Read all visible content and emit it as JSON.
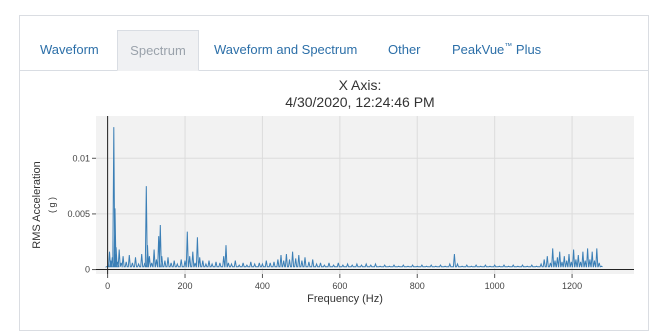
{
  "tabs": [
    {
      "label": "Waveform",
      "active": false
    },
    {
      "label": "Spectrum",
      "active": true
    },
    {
      "label": "Waveform and Spectrum",
      "active": false
    },
    {
      "label": "Other",
      "active": false
    },
    {
      "label": "PeakVue",
      "suffix": "™",
      "label_tail": " Plus",
      "active": false
    }
  ],
  "chart": {
    "title_line1": "X Axis:",
    "title_line2": "4/30/2020, 12:24:46 PM"
  },
  "colors": {
    "series": "#3b7fb6",
    "plot_background": "#f2f2f2",
    "tab_text": "#2c6fa8"
  },
  "chart_data": {
    "type": "line",
    "title": "X Axis: 4/30/2020, 12:24:46 PM",
    "xlabel": "Frequency (Hz)",
    "ylabel": "RMS Acceleration",
    "ylabel_unit": "( g )",
    "xlim": [
      -30,
      1360
    ],
    "ylim": [
      -0.0004,
      0.0138
    ],
    "xticks": [
      0,
      200,
      400,
      600,
      800,
      1000,
      1200
    ],
    "yticks": [
      0,
      0.005,
      0.01
    ],
    "ytick_labels": [
      "0",
      "0.005",
      "0.01"
    ],
    "grid": true,
    "peaks": [
      [
        0,
        0.0003
      ],
      [
        5,
        0.0016
      ],
      [
        8,
        0.0008
      ],
      [
        12,
        0.0011
      ],
      [
        16,
        0.0128
      ],
      [
        19,
        0.0055
      ],
      [
        22,
        0.002
      ],
      [
        26,
        0.0007
      ],
      [
        30,
        0.0018
      ],
      [
        35,
        0.0006
      ],
      [
        40,
        0.0012
      ],
      [
        48,
        0.0007
      ],
      [
        56,
        0.0013
      ],
      [
        64,
        0.0006
      ],
      [
        72,
        0.0011
      ],
      [
        80,
        0.0005
      ],
      [
        88,
        0.0014
      ],
      [
        96,
        0.0006
      ],
      [
        100,
        0.0075
      ],
      [
        103,
        0.0022
      ],
      [
        108,
        0.0012
      ],
      [
        114,
        0.0006
      ],
      [
        120,
        0.0018
      ],
      [
        126,
        0.0009
      ],
      [
        132,
        0.003
      ],
      [
        136,
        0.004
      ],
      [
        140,
        0.0012
      ],
      [
        148,
        0.0008
      ],
      [
        156,
        0.0011
      ],
      [
        164,
        0.0006
      ],
      [
        172,
        0.0008
      ],
      [
        180,
        0.0005
      ],
      [
        190,
        0.0009
      ],
      [
        200,
        0.0008
      ],
      [
        206,
        0.0034
      ],
      [
        212,
        0.0012
      ],
      [
        220,
        0.0016
      ],
      [
        226,
        0.0006
      ],
      [
        232,
        0.0029
      ],
      [
        238,
        0.0011
      ],
      [
        246,
        0.0008
      ],
      [
        254,
        0.0005
      ],
      [
        262,
        0.0008
      ],
      [
        270,
        0.0005
      ],
      [
        280,
        0.0007
      ],
      [
        290,
        0.0006
      ],
      [
        300,
        0.0012
      ],
      [
        306,
        0.0022
      ],
      [
        312,
        0.0006
      ],
      [
        320,
        0.0005
      ],
      [
        330,
        0.0008
      ],
      [
        340,
        0.0004
      ],
      [
        350,
        0.0006
      ],
      [
        360,
        0.0004
      ],
      [
        370,
        0.0007
      ],
      [
        380,
        0.0005
      ],
      [
        392,
        0.0006
      ],
      [
        400,
        0.0005
      ],
      [
        410,
        0.0008
      ],
      [
        420,
        0.0006
      ],
      [
        430,
        0.0007
      ],
      [
        440,
        0.0009
      ],
      [
        448,
        0.0013
      ],
      [
        455,
        0.0008
      ],
      [
        462,
        0.0014
      ],
      [
        470,
        0.0009
      ],
      [
        478,
        0.0016
      ],
      [
        486,
        0.001
      ],
      [
        494,
        0.0013
      ],
      [
        502,
        0.0008
      ],
      [
        510,
        0.0011
      ],
      [
        520,
        0.0007
      ],
      [
        530,
        0.0009
      ],
      [
        540,
        0.0005
      ],
      [
        550,
        0.0006
      ],
      [
        560,
        0.0004
      ],
      [
        572,
        0.0006
      ],
      [
        584,
        0.0004
      ],
      [
        596,
        0.0006
      ],
      [
        608,
        0.0004
      ],
      [
        620,
        0.0005
      ],
      [
        632,
        0.0004
      ],
      [
        644,
        0.0005
      ],
      [
        656,
        0.0004
      ],
      [
        668,
        0.0005
      ],
      [
        680,
        0.0004
      ],
      [
        692,
        0.0005
      ],
      [
        704,
        0.0003
      ],
      [
        716,
        0.0004
      ],
      [
        728,
        0.0003
      ],
      [
        740,
        0.0004
      ],
      [
        752,
        0.0003
      ],
      [
        764,
        0.0004
      ],
      [
        776,
        0.0003
      ],
      [
        788,
        0.0004
      ],
      [
        800,
        0.0003
      ],
      [
        812,
        0.0004
      ],
      [
        824,
        0.0003
      ],
      [
        836,
        0.0004
      ],
      [
        848,
        0.0003
      ],
      [
        860,
        0.0004
      ],
      [
        872,
        0.0003
      ],
      [
        884,
        0.0005
      ],
      [
        896,
        0.0014
      ],
      [
        904,
        0.0005
      ],
      [
        916,
        0.0003
      ],
      [
        928,
        0.0004
      ],
      [
        940,
        0.0003
      ],
      [
        952,
        0.0004
      ],
      [
        964,
        0.0003
      ],
      [
        976,
        0.0004
      ],
      [
        988,
        0.0003
      ],
      [
        1000,
        0.0004
      ],
      [
        1012,
        0.0003
      ],
      [
        1024,
        0.0004
      ],
      [
        1036,
        0.0003
      ],
      [
        1048,
        0.0004
      ],
      [
        1060,
        0.0003
      ],
      [
        1072,
        0.0004
      ],
      [
        1084,
        0.0003
      ],
      [
        1096,
        0.0004
      ],
      [
        1108,
        0.0003
      ],
      [
        1120,
        0.0005
      ],
      [
        1128,
        0.0009
      ],
      [
        1136,
        0.0012
      ],
      [
        1144,
        0.0006
      ],
      [
        1150,
        0.0019
      ],
      [
        1156,
        0.0008
      ],
      [
        1162,
        0.0011
      ],
      [
        1168,
        0.0016
      ],
      [
        1174,
        0.0007
      ],
      [
        1180,
        0.0012
      ],
      [
        1186,
        0.0008
      ],
      [
        1192,
        0.0014
      ],
      [
        1198,
        0.0007
      ],
      [
        1204,
        0.0018
      ],
      [
        1210,
        0.0009
      ],
      [
        1216,
        0.0013
      ],
      [
        1222,
        0.0007
      ],
      [
        1228,
        0.0016
      ],
      [
        1234,
        0.0008
      ],
      [
        1240,
        0.0019
      ],
      [
        1246,
        0.0009
      ],
      [
        1252,
        0.0016
      ],
      [
        1258,
        0.0008
      ],
      [
        1264,
        0.0019
      ],
      [
        1270,
        0.0006
      ],
      [
        1276,
        0.0003
      ]
    ]
  }
}
